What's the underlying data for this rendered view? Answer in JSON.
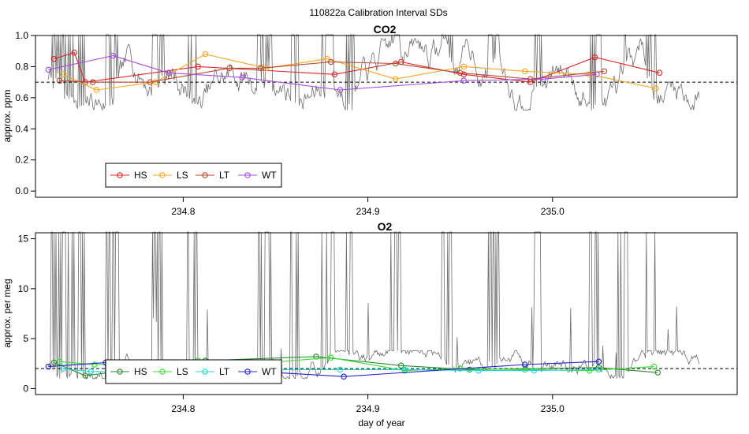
{
  "figure_title": "110822a   Calibration Interval SDs",
  "colors": {
    "HS": "#d62728",
    "LS": "#f5a623",
    "LT": "#b5482d",
    "WT": "#a64de0",
    "HS2": "#2e8b2e",
    "LS2": "#33dd33",
    "LT2": "#22d5d5",
    "WT2": "#2222cc",
    "trace": "#555555"
  },
  "chart_data": [
    {
      "type": "line",
      "title": "CO2",
      "xlabel": "",
      "ylabel": "approx. ppm",
      "xlim": [
        234.72,
        235.1
      ],
      "ylim": [
        0.0,
        1.0
      ],
      "xticks": [
        234.8,
        234.9,
        235.0
      ],
      "xtick_labels": [
        "234.8",
        "234.9",
        "235.0"
      ],
      "yticks": [
        0.0,
        0.2,
        0.4,
        0.6,
        0.8,
        1.0
      ],
      "ytick_labels": [
        "0.0",
        "0.2",
        "0.4",
        "0.6",
        "0.8",
        "1.0"
      ],
      "reference_line": 0.7,
      "legend_position": "bottom-left",
      "series": [
        {
          "name": "HS",
          "color": "#d62728",
          "x": [
            234.73,
            234.741,
            234.747,
            234.808,
            234.882,
            234.918,
            234.952,
            234.988,
            235.023,
            235.058
          ],
          "values": [
            0.85,
            0.89,
            0.7,
            0.8,
            0.75,
            0.83,
            0.75,
            0.7,
            0.86,
            0.76
          ]
        },
        {
          "name": "LS",
          "color": "#f5a623",
          "x": [
            234.735,
            234.753,
            234.785,
            234.812,
            234.845,
            234.878,
            234.915,
            234.952,
            234.985,
            235.02,
            235.056
          ],
          "values": [
            0.75,
            0.65,
            0.7,
            0.88,
            0.79,
            0.85,
            0.72,
            0.8,
            0.77,
            0.75,
            0.66
          ]
        },
        {
          "name": "LT",
          "color": "#b5482d",
          "x": [
            234.733,
            234.751,
            234.782,
            234.825,
            234.842,
            234.88,
            234.915,
            234.95,
            234.988,
            235.028
          ],
          "values": [
            0.71,
            0.7,
            0.7,
            0.79,
            0.79,
            0.83,
            0.82,
            0.76,
            0.72,
            0.77
          ]
        },
        {
          "name": "WT",
          "color": "#a64de0",
          "x": [
            234.727,
            234.762,
            234.792,
            234.832,
            234.885,
            234.952,
            234.995,
            235.024
          ],
          "values": [
            0.78,
            0.87,
            0.76,
            0.73,
            0.65,
            0.71,
            0.72,
            0.75
          ]
        }
      ]
    },
    {
      "type": "line",
      "title": "O2",
      "xlabel": "day of year",
      "ylabel": "approx. per meg",
      "xlim": [
        234.72,
        235.1
      ],
      "ylim": [
        0,
        15
      ],
      "xticks": [
        234.8,
        234.9,
        235.0
      ],
      "xtick_labels": [
        "234.8",
        "234.9",
        "235.0"
      ],
      "yticks": [
        0,
        5,
        10,
        15
      ],
      "ytick_labels": [
        "0",
        "5",
        "10",
        "15"
      ],
      "reference_line": 2,
      "legend_position": "bottom-left",
      "series": [
        {
          "name": "HS",
          "color": "#2e8b2e",
          "x": [
            234.73,
            234.747,
            234.812,
            234.872,
            234.918,
            234.955,
            235.025,
            235.057
          ],
          "values": [
            2.6,
            1.3,
            2.8,
            3.2,
            2.3,
            1.9,
            2.1,
            1.6
          ]
        },
        {
          "name": "LS",
          "color": "#33dd33",
          "x": [
            234.733,
            234.752,
            234.808,
            234.838,
            234.88,
            234.92,
            234.95,
            234.985,
            235.02,
            235.055
          ],
          "values": [
            2.7,
            2.4,
            2.8,
            2.5,
            3.1,
            1.8,
            2.0,
            1.9,
            1.8,
            2.2
          ]
        },
        {
          "name": "LT",
          "color": "#22d5d5",
          "x": [
            234.735,
            234.75,
            234.79,
            234.84,
            234.885,
            234.92,
            234.96,
            234.99,
            235.025
          ],
          "values": [
            2.0,
            1.7,
            1.7,
            1.9,
            1.9,
            1.9,
            1.8,
            1.8,
            1.9
          ]
        },
        {
          "name": "WT",
          "color": "#2222cc",
          "x": [
            234.727,
            234.758,
            234.887,
            234.985,
            235.025
          ],
          "values": [
            2.2,
            2.6,
            1.2,
            2.4,
            2.7
          ]
        }
      ]
    }
  ]
}
